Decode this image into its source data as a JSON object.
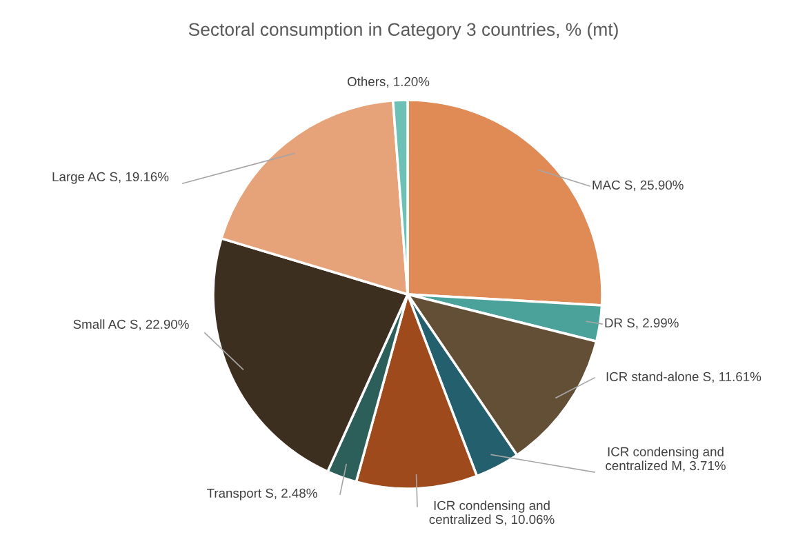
{
  "chart_data": {
    "type": "pie",
    "title": "Sectoral consumption in Category 3 countries, % (mt)",
    "categories": [
      "MAC S",
      "DR S",
      "ICR stand-alone S",
      "ICR condensing and centralized M",
      "ICR condensing and centralized S",
      "Transport S",
      "Small AC S",
      "Large AC S",
      "Others"
    ],
    "values": [
      25.9,
      2.99,
      11.61,
      3.71,
      10.06,
      2.48,
      22.9,
      19.16,
      1.2
    ],
    "value_labels": [
      "25.90%",
      "2.99%",
      "11.61%",
      "3.71%",
      "10.06%",
      "2.48%",
      "22.90%",
      "19.16%",
      "1.20%"
    ],
    "colors": [
      "#e08a55",
      "#4aa29a",
      "#634f35",
      "#245f6d",
      "#9e4a1c",
      "#2c5f5a",
      "#3d2f20",
      "#e6a278",
      "#6cc0b6"
    ],
    "legend": false
  }
}
